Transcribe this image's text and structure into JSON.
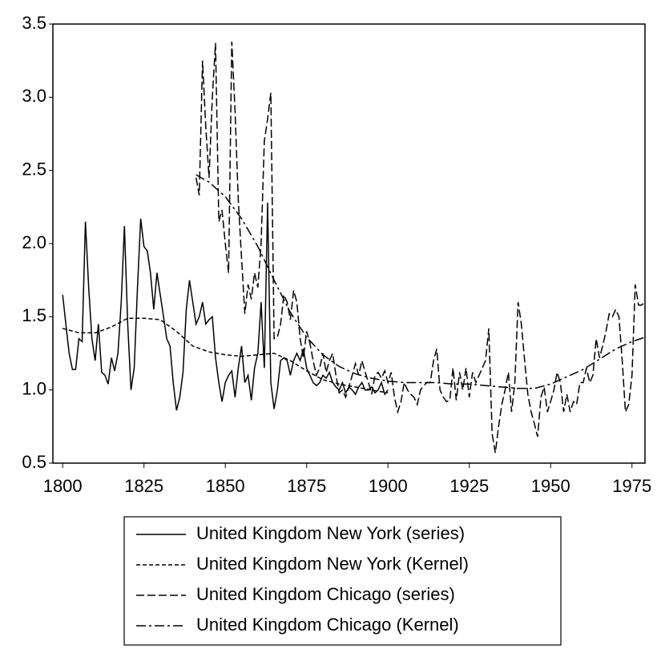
{
  "chart_data": {
    "type": "line",
    "xlim": [
      1797,
      1979
    ],
    "xticks": [
      1800,
      1825,
      1850,
      1875,
      1900,
      1925,
      1950,
      1975
    ],
    "ylim": [
      0.5,
      3.5
    ],
    "yticks": [
      0.5,
      {
        "value": 1,
        "label": "1.0"
      },
      1.5,
      {
        "value": 2,
        "label": "2.0"
      },
      2.5,
      {
        "value": 3,
        "label": "3.0"
      },
      3.5
    ],
    "grid": false,
    "legend": "bottom",
    "series": [
      {
        "name": "United Kingdom New York (series)",
        "color": "#000000",
        "line_style": "solid",
        "x": [
          1800,
          1801,
          1802,
          1803,
          1804,
          1805,
          1806,
          1807,
          1808,
          1809,
          1810,
          1811,
          1812,
          1813,
          1814,
          1815,
          1816,
          1817,
          1818,
          1819,
          1820,
          1821,
          1822,
          1823,
          1824,
          1825,
          1826,
          1827,
          1828,
          1829,
          1830,
          1831,
          1832,
          1833,
          1834,
          1835,
          1836,
          1837,
          1838,
          1839,
          1840,
          1841,
          1842,
          1843,
          1844,
          1845,
          1846,
          1847,
          1848,
          1849,
          1850,
          1851,
          1852,
          1853,
          1854,
          1855,
          1856,
          1857,
          1858,
          1859,
          1860,
          1861,
          1862,
          1863,
          1864,
          1865,
          1866,
          1867,
          1868,
          1869,
          1870,
          1871,
          1872,
          1873,
          1874,
          1875,
          1876,
          1877,
          1878,
          1879,
          1880,
          1881,
          1882,
          1883,
          1884,
          1885,
          1886,
          1887,
          1888,
          1889,
          1890,
          1891,
          1892,
          1893,
          1894,
          1895,
          1896,
          1897,
          1898,
          1899,
          1900
        ],
        "values": [
          1.65,
          1.45,
          1.25,
          1.14,
          1.14,
          1.35,
          1.33,
          2.15,
          1.7,
          1.35,
          1.2,
          1.45,
          1.12,
          1.1,
          1.04,
          1.22,
          1.13,
          1.25,
          1.6,
          2.12,
          1.45,
          1.0,
          1.15,
          1.7,
          2.17,
          1.98,
          1.95,
          1.8,
          1.55,
          1.8,
          1.65,
          1.5,
          1.35,
          1.3,
          1.05,
          0.86,
          0.95,
          1.12,
          1.55,
          1.75,
          1.6,
          1.45,
          1.5,
          1.6,
          1.45,
          1.48,
          1.5,
          1.22,
          1.05,
          0.92,
          1.05,
          1.1,
          1.13,
          0.95,
          1.15,
          1.3,
          1.05,
          1.1,
          0.93,
          1.15,
          1.25,
          1.6,
          1.15,
          2.28,
          1.05,
          0.87,
          1.0,
          1.2,
          1.22,
          1.2,
          1.1,
          1.2,
          1.25,
          1.2,
          1.28,
          1.15,
          1.1,
          1.05,
          1.03,
          1.05,
          1.1,
          1.08,
          1.12,
          1.05,
          1.02,
          1.0,
          1.05,
          0.98,
          1.02,
          1.0,
          0.97,
          1.02,
          1.05,
          1.0,
          1.0,
          1.02,
          0.98,
          1.0,
          1.05,
          0.97,
          1.0
        ]
      },
      {
        "name": "United Kingdom New York (Kernel)",
        "color": "#000000",
        "line_style": "dashed",
        "x": [
          1800,
          1805,
          1810,
          1815,
          1820,
          1825,
          1830,
          1835,
          1840,
          1845,
          1850,
          1855,
          1860,
          1865,
          1870,
          1875,
          1880,
          1885,
          1890,
          1895,
          1900
        ],
        "values": [
          1.42,
          1.39,
          1.39,
          1.43,
          1.49,
          1.49,
          1.48,
          1.4,
          1.3,
          1.26,
          1.24,
          1.23,
          1.24,
          1.25,
          1.2,
          1.13,
          1.07,
          1.04,
          1.02,
          1.0,
          0.98
        ]
      },
      {
        "name": "United Kingdom Chicago (series)",
        "color": "#000000",
        "line_style": "long-dashed",
        "x": [
          1841,
          1842,
          1843,
          1844,
          1845,
          1846,
          1847,
          1848,
          1849,
          1850,
          1851,
          1852,
          1853,
          1854,
          1855,
          1856,
          1857,
          1858,
          1859,
          1860,
          1861,
          1862,
          1863,
          1864,
          1865,
          1866,
          1867,
          1868,
          1869,
          1870,
          1871,
          1872,
          1873,
          1874,
          1875,
          1876,
          1877,
          1878,
          1879,
          1880,
          1881,
          1882,
          1883,
          1884,
          1885,
          1886,
          1887,
          1888,
          1889,
          1890,
          1891,
          1892,
          1893,
          1894,
          1895,
          1896,
          1897,
          1898,
          1899,
          1900,
          1901,
          1902,
          1903,
          1904,
          1905,
          1906,
          1907,
          1908,
          1909,
          1910,
          1911,
          1912,
          1913,
          1914,
          1915,
          1916,
          1917,
          1918,
          1919,
          1920,
          1921,
          1922,
          1923,
          1924,
          1925,
          1926,
          1927,
          1928,
          1929,
          1930,
          1931,
          1932,
          1933,
          1934,
          1935,
          1936,
          1937,
          1938,
          1939,
          1940,
          1941,
          1942,
          1943,
          1944,
          1945,
          1946,
          1947,
          1948,
          1949,
          1950,
          1951,
          1952,
          1953,
          1954,
          1955,
          1956,
          1957,
          1958,
          1959,
          1960,
          1961,
          1962,
          1963,
          1964,
          1965,
          1966,
          1967,
          1968,
          1969,
          1970,
          1971,
          1972,
          1973,
          1974,
          1975,
          1976,
          1977,
          1978,
          1979
        ],
        "values": [
          2.45,
          2.33,
          3.25,
          2.8,
          2.45,
          3.0,
          3.37,
          2.15,
          2.23,
          2.0,
          1.8,
          3.38,
          2.9,
          2.3,
          1.9,
          1.52,
          1.72,
          1.62,
          1.8,
          1.7,
          2.0,
          2.7,
          2.85,
          3.03,
          1.35,
          1.36,
          1.45,
          1.65,
          1.6,
          1.48,
          1.68,
          1.6,
          1.35,
          1.22,
          1.4,
          1.32,
          1.2,
          1.1,
          1.15,
          1.25,
          1.12,
          1.2,
          1.25,
          1.1,
          0.98,
          1.0,
          0.95,
          1.02,
          1.1,
          1.18,
          1.1,
          1.2,
          1.12,
          1.05,
          0.97,
          1.1,
          1.12,
          1.08,
          1.13,
          1.05,
          1.12,
          0.95,
          0.85,
          0.92,
          1.05,
          1.0,
          0.97,
          0.95,
          0.9,
          1.0,
          1.03,
          1.05,
          1.05,
          1.2,
          1.28,
          1.0,
          0.95,
          0.92,
          0.93,
          1.15,
          0.93,
          1.12,
          1.0,
          1.15,
          0.95,
          1.12,
          1.05,
          1.1,
          1.15,
          1.2,
          1.42,
          0.7,
          0.57,
          0.75,
          0.9,
          1.0,
          1.12,
          0.85,
          1.05,
          1.6,
          1.45,
          1.2,
          0.97,
          0.85,
          0.77,
          0.68,
          0.95,
          1.02,
          0.85,
          0.92,
          1.0,
          1.12,
          1.05,
          0.85,
          0.97,
          0.85,
          0.92,
          0.9,
          1.05,
          1.05,
          1.15,
          1.05,
          1.1,
          1.35,
          1.22,
          1.3,
          1.4,
          1.52,
          1.5,
          1.55,
          1.5,
          1.2,
          0.85,
          0.9,
          1.1,
          1.72,
          1.58,
          1.58,
          1.6
        ]
      },
      {
        "name": "United Kingdom Chicago (Kernel)",
        "color": "#000000",
        "line_style": "dash-dot",
        "x": [
          1841,
          1845,
          1850,
          1855,
          1860,
          1865,
          1870,
          1875,
          1880,
          1885,
          1890,
          1895,
          1900,
          1905,
          1910,
          1915,
          1920,
          1925,
          1930,
          1935,
          1940,
          1945,
          1950,
          1955,
          1960,
          1965,
          1970,
          1975,
          1979
        ],
        "values": [
          2.47,
          2.42,
          2.32,
          2.17,
          1.98,
          1.75,
          1.53,
          1.36,
          1.24,
          1.16,
          1.11,
          1.08,
          1.06,
          1.05,
          1.05,
          1.05,
          1.04,
          1.04,
          1.03,
          1.02,
          1.01,
          1.01,
          1.04,
          1.09,
          1.14,
          1.21,
          1.28,
          1.33,
          1.36
        ]
      }
    ]
  }
}
